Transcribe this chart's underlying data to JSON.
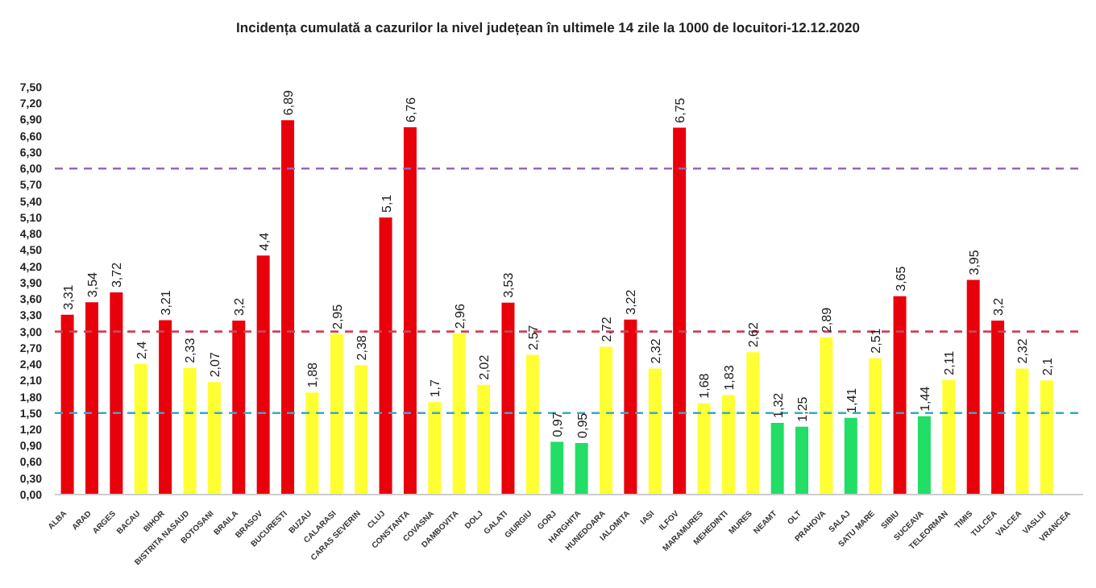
{
  "chart_data": {
    "type": "bar",
    "title": "Incidența cumulată a cazurilor la nivel județean în ultimele 14 zile la 1000 de locuitori-12.12.2020",
    "categories": [
      "ALBA",
      "ARAD",
      "ARGES",
      "BACAU",
      "BIHOR",
      "BISTRITA NASAUD",
      "BOTOSANI",
      "BRAILA",
      "BRASOV",
      "BUCURESTI",
      "BUZAU",
      "CALARASI",
      "CARAS SEVERIN",
      "CLUJ",
      "CONSTANTA",
      "COVASNA",
      "DAMBOVITA",
      "DOLJ",
      "GALATI",
      "GIURGIU",
      "GORJ",
      "HARGHITA",
      "HUNEDOARA",
      "IALOMITA",
      "IASI",
      "ILFOV",
      "MARAMURES",
      "MEHEDINTI",
      "MURES",
      "NEAMT",
      "OLT",
      "PRAHOVA",
      "SALAJ",
      "SATU MARE",
      "SIBIU",
      "SUCEAVA",
      "TELEORMAN",
      "TIMIS",
      "TULCEA",
      "VALCEA",
      "VASLUI",
      "VRANCEA"
    ],
    "values": [
      3.31,
      3.54,
      3.72,
      2.4,
      3.21,
      2.33,
      2.07,
      3.2,
      4.4,
      6.89,
      1.88,
      2.95,
      2.38,
      5.1,
      6.76,
      1.7,
      2.96,
      2.02,
      3.53,
      2.57,
      0.97,
      0.95,
      2.72,
      3.22,
      2.32,
      6.75,
      1.68,
      1.83,
      2.62,
      1.32,
      1.25,
      2.89,
      1.41,
      2.51,
      3.65,
      1.44,
      2.11,
      3.95,
      3.2,
      2.32,
      2.1,
      null
    ],
    "value_labels": [
      "3,31",
      "3,54",
      "3,72",
      "2,4",
      "3,21",
      "2,33",
      "2,07",
      "3,2",
      "4,4",
      "6,89",
      "1,88",
      "2,95",
      "2,38",
      "5,1",
      "6,76",
      "1,7",
      "2,96",
      "2,02",
      "3,53",
      "2,57",
      "0,97",
      "0,95",
      "2,72",
      "3,22",
      "2,32",
      "6,75",
      "1,68",
      "1,83",
      "2,62",
      "1,32",
      "1,25",
      "2,89",
      "1,41",
      "2,51",
      "3,65",
      "1,44",
      "2,11",
      "3,95",
      "3,2",
      "2,32",
      "2,1",
      null
    ],
    "colors": [
      "#e8000b",
      "#e8000b",
      "#e8000b",
      "#ffff33",
      "#e8000b",
      "#ffff33",
      "#ffff33",
      "#e8000b",
      "#e8000b",
      "#e8000b",
      "#ffff33",
      "#ffff33",
      "#ffff33",
      "#e8000b",
      "#e8000b",
      "#ffff33",
      "#ffff33",
      "#ffff33",
      "#e8000b",
      "#ffff33",
      "#22dd66",
      "#22dd66",
      "#ffff33",
      "#e8000b",
      "#ffff33",
      "#e8000b",
      "#ffff33",
      "#ffff33",
      "#ffff33",
      "#22dd66",
      "#22dd66",
      "#ffff33",
      "#22dd66",
      "#ffff33",
      "#e8000b",
      "#22dd66",
      "#ffff33",
      "#e8000b",
      "#e8000b",
      "#ffff33",
      "#ffff33",
      "#ffff33"
    ],
    "ylim": [
      0,
      7.5
    ],
    "yticks": [
      {
        "value": 0,
        "label": "0,00"
      },
      {
        "value": 0.3,
        "label": "0,30"
      },
      {
        "value": 0.6,
        "label": "0,60"
      },
      {
        "value": 0.9,
        "label": "0,90"
      },
      {
        "value": 1.2,
        "label": "1,20"
      },
      {
        "value": 1.5,
        "label": "1,50"
      },
      {
        "value": 1.8,
        "label": "1,80"
      },
      {
        "value": 2.1,
        "label": "2,10"
      },
      {
        "value": 2.4,
        "label": "2,40"
      },
      {
        "value": 2.7,
        "label": "2,70"
      },
      {
        "value": 3.0,
        "label": "3,00"
      },
      {
        "value": 3.3,
        "label": "3,30"
      },
      {
        "value": 3.6,
        "label": "3,60"
      },
      {
        "value": 3.9,
        "label": "3,90"
      },
      {
        "value": 4.2,
        "label": "4,20"
      },
      {
        "value": 4.5,
        "label": "4,50"
      },
      {
        "value": 4.8,
        "label": "4,80"
      },
      {
        "value": 5.1,
        "label": "5,10"
      },
      {
        "value": 5.4,
        "label": "5,40"
      },
      {
        "value": 5.7,
        "label": "5,70"
      },
      {
        "value": 6.0,
        "label": "6,00"
      },
      {
        "value": 6.3,
        "label": "6,30"
      },
      {
        "value": 6.6,
        "label": "6,60"
      },
      {
        "value": 6.9,
        "label": "6,90"
      },
      {
        "value": 7.2,
        "label": "7,20"
      },
      {
        "value": 7.5,
        "label": "7,50"
      }
    ],
    "ref_lines": [
      {
        "axis": "y",
        "value": 1.5,
        "color": "#33aacc",
        "line_style": "dashed"
      },
      {
        "axis": "y",
        "value": 3.0,
        "color": "#cc4455",
        "line_style": "dashed"
      },
      {
        "axis": "y",
        "value": 6.0,
        "color": "#9966bb",
        "line_style": "dashed"
      }
    ],
    "grid": false,
    "legend": false
  }
}
